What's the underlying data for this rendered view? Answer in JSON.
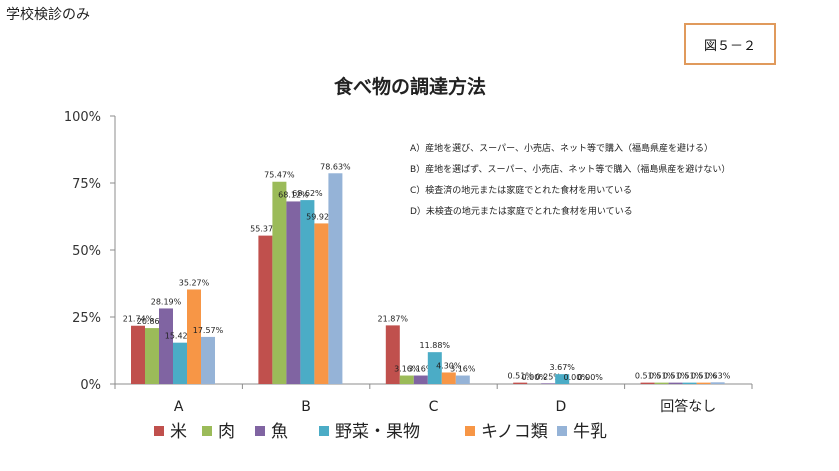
{
  "header": {
    "corner_note": "学校検診のみ",
    "figure_number": "図５－２"
  },
  "chart_data": {
    "type": "bar",
    "title": "食べ物の調達方法",
    "xlabel": "",
    "ylabel": "",
    "categories": [
      "A",
      "B",
      "C",
      "D",
      "回答なし"
    ],
    "ylim": [
      0,
      100
    ],
    "yticks": [
      "0%",
      "25%",
      "50%",
      "75%",
      "100%"
    ],
    "grid": false,
    "legend_position": "bottom",
    "series": [
      {
        "name": "米",
        "color": "#c0504d",
        "values": [
          21.74,
          55.37,
          21.87,
          0.51,
          0.51
        ],
        "labels": [
          "21.74%",
          "55.37%",
          "21.87%",
          "0.51%",
          "0.51%"
        ]
      },
      {
        "name": "肉",
        "color": "#9bbb59",
        "values": [
          20.86,
          75.47,
          3.16,
          0.0,
          0.51
        ],
        "labels": [
          "20.86%",
          "75.47%",
          "3.16%",
          "0.00%",
          "0.51%"
        ]
      },
      {
        "name": "魚",
        "color": "#8064a2",
        "values": [
          28.19,
          68.12,
          3.16,
          0.25,
          0.51
        ],
        "labels": [
          "28.19%",
          "68.12%",
          "3.16%",
          "0.25%",
          "0.51%"
        ]
      },
      {
        "name": "野菜・果物",
        "color": "#4bacc6",
        "values": [
          15.42,
          68.62,
          11.88,
          3.67,
          0.51
        ],
        "labels": [
          "15.42%",
          "68.62%",
          "11.88%",
          "3.67%",
          "0.51%"
        ]
      },
      {
        "name": "キノコ類",
        "color": "#f79646",
        "values": [
          35.27,
          59.92,
          4.3,
          0.0,
          0.51
        ],
        "labels": [
          "35.27%",
          "59.92%",
          "4.30%",
          "0.00%",
          "0.51%"
        ]
      },
      {
        "name": "牛乳",
        "color": "#95b3d7",
        "values": [
          17.57,
          78.63,
          3.16,
          0.0,
          0.63
        ],
        "labels": [
          "17.57%",
          "78.63%",
          "3.16%",
          "0.00%",
          "0.63%"
        ]
      }
    ],
    "annotations": [
      "A）産地を選び、スーパー、小売店、ネット等で購入（福島県産を避ける）",
      "B）産地を選ばず、スーパー、小売店、ネット等で購入（福島県産を避けない）",
      "C）検査済の地元または家庭でとれた食材を用いている",
      "D）未検査の地元または家庭でとれた食材を用いている"
    ]
  }
}
